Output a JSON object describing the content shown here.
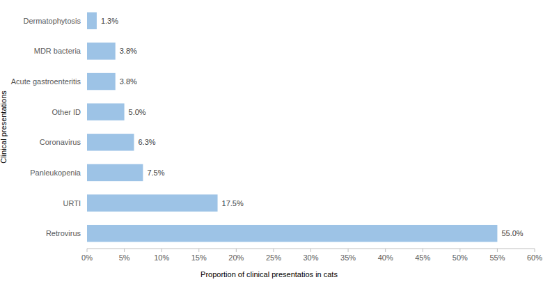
{
  "chart_data": {
    "type": "bar",
    "orientation": "horizontal",
    "categories": [
      "Dermatophytosis",
      "MDR bacteria",
      "Acute gastroenteritis",
      "Other ID",
      "Coronavirus",
      "Panleukopenia",
      "URTI",
      "Retrovirus"
    ],
    "values": [
      1.3,
      3.8,
      3.8,
      5.0,
      6.3,
      7.5,
      17.5,
      55.0
    ],
    "value_labels": [
      "1.3%",
      "3.8%",
      "3.8%",
      "5.0%",
      "6.3%",
      "7.5%",
      "17.5%",
      "55.0%"
    ],
    "data_labels": true,
    "color": "#9dc3e6",
    "x_label": "Proportion of clinical presentatios in cats",
    "y_label": "Clinical presentations",
    "xlim": [
      0,
      60
    ],
    "xticks": [
      {
        "value": 0,
        "label": "0%"
      },
      {
        "value": 5,
        "label": "5%"
      },
      {
        "value": 10,
        "label": "10%"
      },
      {
        "value": 15,
        "label": "15%"
      },
      {
        "value": 20,
        "label": "20%"
      },
      {
        "value": 25,
        "label": "25%"
      },
      {
        "value": 30,
        "label": "30%"
      },
      {
        "value": 35,
        "label": "35%"
      },
      {
        "value": 40,
        "label": "40%"
      },
      {
        "value": 45,
        "label": "45%"
      },
      {
        "value": 50,
        "label": "50%"
      },
      {
        "value": 55,
        "label": "55%"
      },
      {
        "value": 60,
        "label": "60%"
      }
    ],
    "grid": false
  }
}
